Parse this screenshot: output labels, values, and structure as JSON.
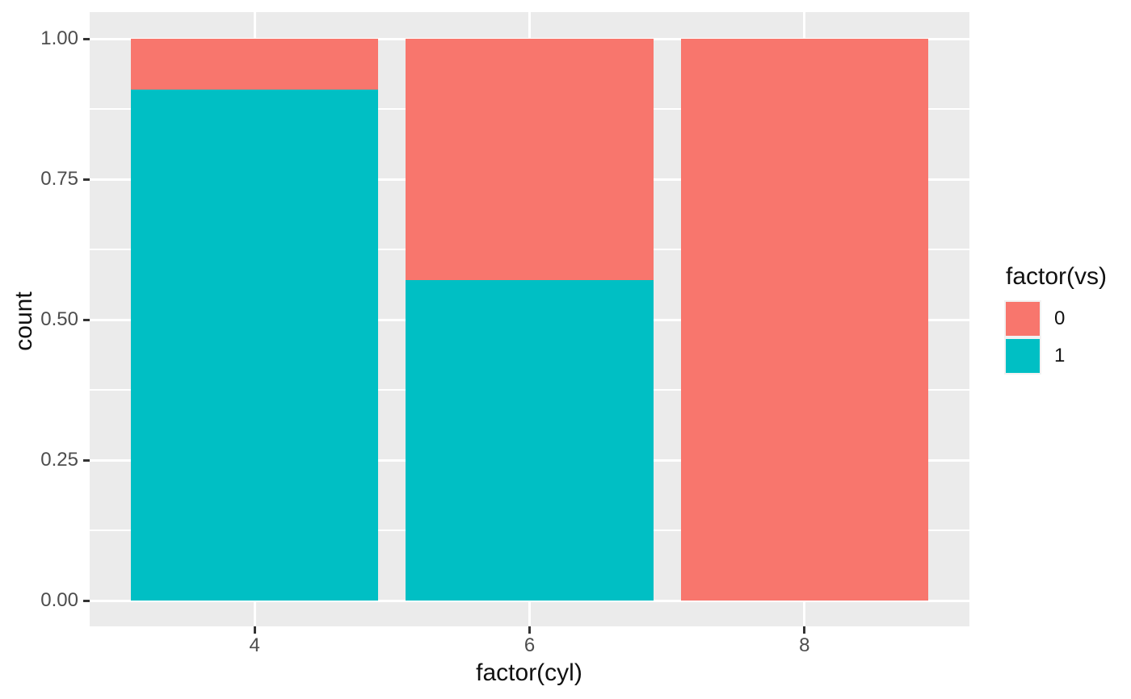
{
  "chart_data": {
    "type": "bar",
    "subtype": "stacked-fill",
    "title": "",
    "xlabel": "factor(cyl)",
    "ylabel": "count",
    "categories": [
      "4",
      "6",
      "8"
    ],
    "series": [
      {
        "name": "0",
        "color": "#F8766D",
        "values": [
          0.091,
          0.429,
          1.0
        ]
      },
      {
        "name": "1",
        "color": "#00BFC4",
        "values": [
          0.909,
          0.571,
          0.0
        ]
      }
    ],
    "ylim": [
      0,
      1
    ],
    "y_tick_labels": [
      "0.00",
      "0.25",
      "0.50",
      "0.75",
      "1.00"
    ],
    "y_tick_values": [
      0,
      0.25,
      0.5,
      0.75,
      1.0
    ],
    "y_minor_values": [
      0.125,
      0.375,
      0.625,
      0.875
    ],
    "grid": "major-and-minor, white on gray panel",
    "legend": {
      "title": "factor(vs)",
      "position": "right",
      "entries": [
        {
          "label": "0",
          "color": "#F8766D"
        },
        {
          "label": "1",
          "color": "#00BFC4"
        }
      ]
    }
  },
  "style": {
    "panel_bg": "#EBEBEB",
    "grid_color": "#FFFFFF",
    "axis_tick_color": "#333333",
    "tick_label_color": "#4D4D4D",
    "title_color": "#111111",
    "legend_key_bg": "#F2F2F2",
    "page_bg": "#FFFFFF"
  }
}
